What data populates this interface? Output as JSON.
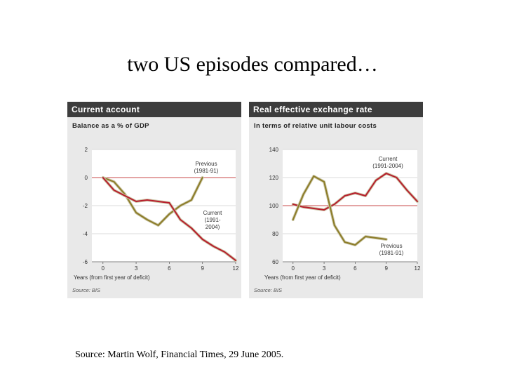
{
  "slide": {
    "title": "two US episodes compared…",
    "source": "Source: Martin Wolf, Financial Times, 29 June 2005."
  },
  "chart_data": [
    {
      "type": "line",
      "title": "Current account",
      "subtitle": "Balance as a % of GDP",
      "xlabel": "Years (from first year of deficit)",
      "source_note": "Source: BIS",
      "xlim": [
        -1,
        12
      ],
      "ylim": [
        -6,
        2
      ],
      "xticks": [
        0,
        3,
        6,
        9,
        12
      ],
      "yticks": [
        2,
        0,
        -2,
        -4,
        -6
      ],
      "reference_y": 0,
      "series": [
        {
          "name": "Previous (1981-91)",
          "color": "#8c7c28",
          "label_lines": [
            "Previous",
            "(1981-91)"
          ],
          "x": [
            0,
            1,
            2,
            3,
            4,
            5,
            6,
            7,
            8,
            9
          ],
          "y": [
            0.0,
            -0.3,
            -1.2,
            -2.5,
            -3.0,
            -3.4,
            -2.6,
            -2.0,
            -1.6,
            0.0
          ]
        },
        {
          "name": "Current (1991-2004)",
          "color": "#b81c2c",
          "label_lines": [
            "Current",
            "(1991-",
            "2004)"
          ],
          "x": [
            0,
            1,
            2,
            3,
            4,
            5,
            6,
            7,
            8,
            9,
            10,
            11,
            12
          ],
          "y": [
            0.0,
            -0.9,
            -1.3,
            -1.7,
            -1.6,
            -1.7,
            -1.8,
            -3.0,
            -3.6,
            -4.4,
            -4.9,
            -5.3,
            -5.9
          ]
        }
      ]
    },
    {
      "type": "line",
      "title": "Real effective exchange rate",
      "subtitle": "In terms of relative unit labour costs",
      "xlabel": "Years (from first year of deficit)",
      "source_note": "Source: BIS",
      "xlim": [
        -1,
        12
      ],
      "ylim": [
        60,
        140
      ],
      "xticks": [
        0,
        3,
        6,
        9,
        12
      ],
      "yticks": [
        140,
        120,
        100,
        80,
        60
      ],
      "reference_y": 100,
      "series": [
        {
          "name": "Current (1991-2004)",
          "color": "#b81c2c",
          "label_lines": [
            "Current",
            "(1991-2004)"
          ],
          "x": [
            0,
            1,
            2,
            3,
            4,
            5,
            6,
            7,
            8,
            9,
            10,
            11,
            12
          ],
          "y": [
            101,
            99,
            98,
            97,
            101,
            107,
            109,
            107,
            118,
            123,
            120,
            111,
            103
          ]
        },
        {
          "name": "Previous (1981-91)",
          "color": "#8c7c28",
          "label_lines": [
            "Previous",
            "(1981-91)"
          ],
          "x": [
            0,
            1,
            2,
            3,
            4,
            5,
            6,
            7,
            8,
            9
          ],
          "y": [
            90,
            108,
            121,
            117,
            86,
            74,
            72,
            78,
            77,
            76
          ]
        }
      ]
    }
  ]
}
